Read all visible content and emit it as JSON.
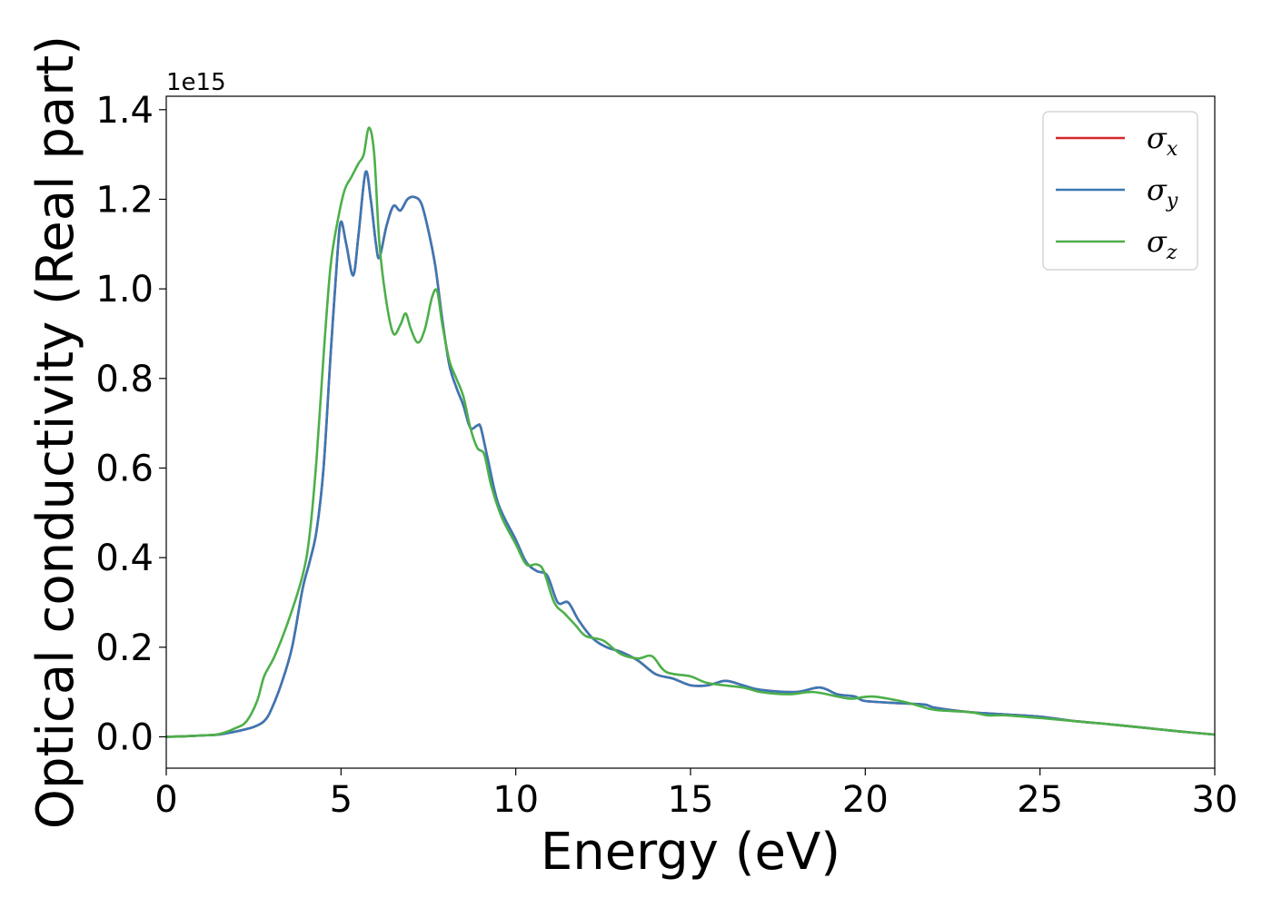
{
  "chart_data": {
    "type": "line",
    "title": "",
    "xlabel": "Energy (eV)",
    "ylabel": "Optical conductivity (Real part)",
    "y_offset_label": "1e15",
    "xlim": [
      0,
      30
    ],
    "ylim": [
      -0.07,
      1.43
    ],
    "xticks": [
      0,
      5,
      10,
      15,
      20,
      25,
      30
    ],
    "xtick_labels": [
      "0",
      "5",
      "10",
      "15",
      "20",
      "25",
      "30"
    ],
    "yticks": [
      0.0,
      0.2,
      0.4,
      0.6,
      0.8,
      1.0,
      1.2,
      1.4
    ],
    "ytick_labels": [
      "0.0",
      "0.2",
      "0.4",
      "0.6",
      "0.8",
      "1.0",
      "1.2",
      "1.4"
    ],
    "grid": false,
    "legend_position": "top-right",
    "series": [
      {
        "name": "σx",
        "symbol": "σ",
        "subscript": "x",
        "color": "#d62728",
        "points": [
          [
            0,
            0
          ],
          [
            0.5,
            0.001
          ],
          [
            1,
            0.003
          ],
          [
            1.5,
            0.005
          ],
          [
            2,
            0.012
          ],
          [
            2.5,
            0.022
          ],
          [
            2.8,
            0.035
          ],
          [
            3,
            0.06
          ],
          [
            3.3,
            0.12
          ],
          [
            3.6,
            0.2
          ],
          [
            3.9,
            0.33
          ],
          [
            4.1,
            0.39
          ],
          [
            4.3,
            0.46
          ],
          [
            4.5,
            0.6
          ],
          [
            4.7,
            0.85
          ],
          [
            4.9,
            1.08
          ],
          [
            5.0,
            1.15
          ],
          [
            5.15,
            1.1
          ],
          [
            5.35,
            1.03
          ],
          [
            5.5,
            1.12
          ],
          [
            5.7,
            1.26
          ],
          [
            5.85,
            1.2
          ],
          [
            6.0,
            1.1
          ],
          [
            6.1,
            1.07
          ],
          [
            6.3,
            1.14
          ],
          [
            6.5,
            1.185
          ],
          [
            6.7,
            1.175
          ],
          [
            6.9,
            1.2
          ],
          [
            7.1,
            1.205
          ],
          [
            7.3,
            1.19
          ],
          [
            7.5,
            1.13
          ],
          [
            7.7,
            1.05
          ],
          [
            7.9,
            0.93
          ],
          [
            8.1,
            0.83
          ],
          [
            8.3,
            0.78
          ],
          [
            8.5,
            0.74
          ],
          [
            8.7,
            0.69
          ],
          [
            8.9,
            0.695
          ],
          [
            9.0,
            0.69
          ],
          [
            9.2,
            0.62
          ],
          [
            9.5,
            0.52
          ],
          [
            10.0,
            0.44
          ],
          [
            10.3,
            0.39
          ],
          [
            10.6,
            0.37
          ],
          [
            10.9,
            0.36
          ],
          [
            11.2,
            0.3
          ],
          [
            11.5,
            0.3
          ],
          [
            11.8,
            0.26
          ],
          [
            12.2,
            0.22
          ],
          [
            12.6,
            0.2
          ],
          [
            13,
            0.19
          ],
          [
            13.5,
            0.17
          ],
          [
            14,
            0.14
          ],
          [
            14.5,
            0.13
          ],
          [
            15,
            0.115
          ],
          [
            15.5,
            0.115
          ],
          [
            16,
            0.125
          ],
          [
            16.5,
            0.115
          ],
          [
            17,
            0.105
          ],
          [
            18,
            0.1
          ],
          [
            18.7,
            0.11
          ],
          [
            19.2,
            0.095
          ],
          [
            19.7,
            0.09
          ],
          [
            20,
            0.08
          ],
          [
            21,
            0.075
          ],
          [
            21.7,
            0.072
          ],
          [
            22,
            0.065
          ],
          [
            23,
            0.055
          ],
          [
            24,
            0.05
          ],
          [
            25,
            0.045
          ],
          [
            26,
            0.035
          ],
          [
            27,
            0.028
          ],
          [
            28,
            0.02
          ],
          [
            29,
            0.012
          ],
          [
            30,
            0.005
          ]
        ]
      },
      {
        "name": "σy",
        "symbol": "σ",
        "subscript": "y",
        "color": "#3a78b5",
        "points": [
          [
            0,
            0
          ],
          [
            0.5,
            0.001
          ],
          [
            1,
            0.003
          ],
          [
            1.5,
            0.005
          ],
          [
            2,
            0.012
          ],
          [
            2.5,
            0.022
          ],
          [
            2.8,
            0.035
          ],
          [
            3,
            0.06
          ],
          [
            3.3,
            0.12
          ],
          [
            3.6,
            0.2
          ],
          [
            3.9,
            0.33
          ],
          [
            4.1,
            0.39
          ],
          [
            4.3,
            0.46
          ],
          [
            4.5,
            0.6
          ],
          [
            4.7,
            0.85
          ],
          [
            4.9,
            1.08
          ],
          [
            5.0,
            1.15
          ],
          [
            5.15,
            1.1
          ],
          [
            5.35,
            1.03
          ],
          [
            5.5,
            1.12
          ],
          [
            5.7,
            1.26
          ],
          [
            5.85,
            1.2
          ],
          [
            6.0,
            1.1
          ],
          [
            6.1,
            1.07
          ],
          [
            6.3,
            1.14
          ],
          [
            6.5,
            1.185
          ],
          [
            6.7,
            1.175
          ],
          [
            6.9,
            1.2
          ],
          [
            7.1,
            1.205
          ],
          [
            7.3,
            1.19
          ],
          [
            7.5,
            1.13
          ],
          [
            7.7,
            1.05
          ],
          [
            7.9,
            0.93
          ],
          [
            8.1,
            0.83
          ],
          [
            8.3,
            0.78
          ],
          [
            8.5,
            0.74
          ],
          [
            8.7,
            0.69
          ],
          [
            8.9,
            0.695
          ],
          [
            9.0,
            0.69
          ],
          [
            9.2,
            0.62
          ],
          [
            9.5,
            0.52
          ],
          [
            10.0,
            0.44
          ],
          [
            10.3,
            0.39
          ],
          [
            10.6,
            0.37
          ],
          [
            10.9,
            0.36
          ],
          [
            11.2,
            0.3
          ],
          [
            11.5,
            0.3
          ],
          [
            11.8,
            0.26
          ],
          [
            12.2,
            0.22
          ],
          [
            12.6,
            0.2
          ],
          [
            13,
            0.19
          ],
          [
            13.5,
            0.17
          ],
          [
            14,
            0.14
          ],
          [
            14.5,
            0.13
          ],
          [
            15,
            0.115
          ],
          [
            15.5,
            0.115
          ],
          [
            16,
            0.125
          ],
          [
            16.5,
            0.115
          ],
          [
            17,
            0.105
          ],
          [
            18,
            0.1
          ],
          [
            18.7,
            0.11
          ],
          [
            19.2,
            0.095
          ],
          [
            19.7,
            0.09
          ],
          [
            20,
            0.08
          ],
          [
            21,
            0.075
          ],
          [
            21.7,
            0.072
          ],
          [
            22,
            0.065
          ],
          [
            23,
            0.055
          ],
          [
            24,
            0.05
          ],
          [
            25,
            0.045
          ],
          [
            26,
            0.035
          ],
          [
            27,
            0.028
          ],
          [
            28,
            0.02
          ],
          [
            29,
            0.012
          ],
          [
            30,
            0.005
          ]
        ]
      },
      {
        "name": "σz",
        "symbol": "σ",
        "subscript": "z",
        "color": "#4daf4a",
        "points": [
          [
            0,
            0
          ],
          [
            0.5,
            0.001
          ],
          [
            1,
            0.003
          ],
          [
            1.5,
            0.006
          ],
          [
            2,
            0.02
          ],
          [
            2.3,
            0.035
          ],
          [
            2.6,
            0.08
          ],
          [
            2.8,
            0.135
          ],
          [
            3.1,
            0.18
          ],
          [
            3.5,
            0.26
          ],
          [
            3.9,
            0.36
          ],
          [
            4.1,
            0.45
          ],
          [
            4.3,
            0.62
          ],
          [
            4.5,
            0.85
          ],
          [
            4.7,
            1.05
          ],
          [
            4.9,
            1.15
          ],
          [
            5.1,
            1.22
          ],
          [
            5.3,
            1.25
          ],
          [
            5.5,
            1.28
          ],
          [
            5.65,
            1.3
          ],
          [
            5.8,
            1.36
          ],
          [
            5.95,
            1.3
          ],
          [
            6.1,
            1.1
          ],
          [
            6.3,
            0.97
          ],
          [
            6.5,
            0.9
          ],
          [
            6.7,
            0.92
          ],
          [
            6.85,
            0.945
          ],
          [
            7.0,
            0.91
          ],
          [
            7.2,
            0.88
          ],
          [
            7.4,
            0.91
          ],
          [
            7.6,
            0.98
          ],
          [
            7.75,
            0.995
          ],
          [
            7.9,
            0.92
          ],
          [
            8.1,
            0.84
          ],
          [
            8.3,
            0.8
          ],
          [
            8.5,
            0.76
          ],
          [
            8.7,
            0.69
          ],
          [
            8.9,
            0.645
          ],
          [
            9.1,
            0.63
          ],
          [
            9.3,
            0.56
          ],
          [
            9.6,
            0.49
          ],
          [
            10.0,
            0.43
          ],
          [
            10.3,
            0.385
          ],
          [
            10.6,
            0.385
          ],
          [
            10.8,
            0.37
          ],
          [
            11.1,
            0.3
          ],
          [
            11.4,
            0.275
          ],
          [
            11.7,
            0.25
          ],
          [
            12.0,
            0.225
          ],
          [
            12.5,
            0.215
          ],
          [
            13,
            0.185
          ],
          [
            13.5,
            0.175
          ],
          [
            13.9,
            0.18
          ],
          [
            14.3,
            0.145
          ],
          [
            15,
            0.135
          ],
          [
            15.5,
            0.12
          ],
          [
            16.5,
            0.11
          ],
          [
            17,
            0.1
          ],
          [
            17.8,
            0.095
          ],
          [
            18.5,
            0.1
          ],
          [
            19.2,
            0.09
          ],
          [
            19.6,
            0.085
          ],
          [
            20.2,
            0.09
          ],
          [
            21,
            0.08
          ],
          [
            21.5,
            0.07
          ],
          [
            22,
            0.06
          ],
          [
            23,
            0.055
          ],
          [
            23.5,
            0.048
          ],
          [
            24,
            0.048
          ],
          [
            25,
            0.042
          ],
          [
            26,
            0.035
          ],
          [
            27,
            0.028
          ],
          [
            28,
            0.02
          ],
          [
            29,
            0.012
          ],
          [
            30,
            0.005
          ]
        ]
      }
    ]
  }
}
